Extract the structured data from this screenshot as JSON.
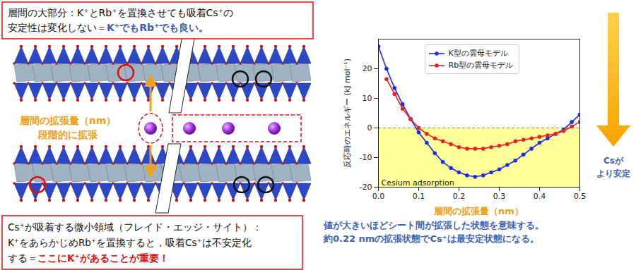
{
  "diagram": {
    "top_box": {
      "lines": [
        "層間の大部分：K⁺とRb⁺を置換させても吸着Cs⁺の",
        "安定性は変化しない＝"
      ],
      "emphasis": "K⁺でもRb⁺でも良い。"
    },
    "bottom_box": {
      "lines": [
        "Cs⁺が吸着する微小領域（フレイド・エッジ・サイト）：",
        "K⁺をあらかじめRb⁺を置換すると，吸着Cs⁺は不安定化",
        "する＝"
      ],
      "emphasis": "ここにK⁺があることが重要！"
    },
    "side_label_lines": [
      "層間の拡張量（nm）",
      "段階的に拡張"
    ]
  },
  "chart_data": {
    "type": "line",
    "x_label": "層間の拡張量（nm）",
    "y_label": "反応時のエネルギー (kJ mol⁻¹)",
    "x": [
      0,
      0.02,
      0.04,
      0.06,
      0.08,
      0.1,
      0.12,
      0.14,
      0.16,
      0.18,
      0.2,
      0.22,
      0.24,
      0.26,
      0.28,
      0.3,
      0.32,
      0.34,
      0.36,
      0.38,
      0.4,
      0.42,
      0.44,
      0.46,
      0.48,
      0.5
    ],
    "series": [
      {
        "name": "K型の雲母モデル",
        "color": "#1a2ee8",
        "marker": "circle",
        "line_style": "solid",
        "values": [
          27.5,
          20,
          13.5,
          8,
          3,
          -1.5,
          -5,
          -8.5,
          -11.5,
          -13.5,
          -15,
          -16,
          -16.5,
          -16,
          -15,
          -14,
          -12.5,
          -11,
          -9,
          -7,
          -5,
          -3.5,
          -2,
          -0.5,
          2,
          4.5
        ]
      },
      {
        "name": "Rb型の雲母モデル",
        "color": "#f02020",
        "marker": "circle",
        "line_style": "solid",
        "values": [
          null,
          16.5,
          11.5,
          6.5,
          3,
          0,
          -2,
          -3.5,
          -4.5,
          -5.5,
          -6.5,
          -7,
          -7,
          -7,
          -6.5,
          -6,
          -5.5,
          -4.5,
          -4,
          -3.5,
          -3,
          -2.5,
          -2,
          -1,
          0.5,
          2
        ]
      }
    ],
    "xlim": [
      0,
      0.5
    ],
    "xticks": [
      {
        "value": 0,
        "label": "0.0"
      },
      0.1,
      0.2,
      0.3,
      0.4,
      0.5
    ],
    "ylim": [
      -20,
      30
    ],
    "yticks": [
      -20,
      -10,
      0,
      10,
      20
    ],
    "grid": false,
    "legend": "upper center",
    "reference_line": 0,
    "shaded_region": {
      "from": -20,
      "to": 0,
      "color": "#ffff99",
      "label": "Cesium adsorption"
    },
    "arrow_label_lines": [
      "Csが",
      "より安定"
    ],
    "caption_lines": [
      "値が大きいほどシート間が拡張した状態を意味する。",
      "約0.22 nmの拡張状態でCs⁺は最安定状態になる。"
    ]
  }
}
